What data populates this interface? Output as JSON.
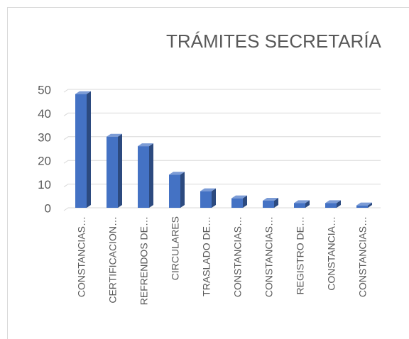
{
  "chart_data": {
    "type": "bar",
    "title": "TRÁMITES SECRETARÍA",
    "categories": [
      "CONSTANCIAS…",
      "CERTIFICACION…",
      "REFRENDOS DE…",
      "CIRCULARES",
      "TRASLADO DE…",
      "CONSTANCIAS…",
      "CONSTANCIAS…",
      "REGISTRO DE…",
      "CONSTANCIA…",
      "CONSTANCIAS…"
    ],
    "values": [
      48,
      30,
      26,
      14,
      7,
      4,
      3,
      2,
      2,
      1
    ],
    "color": "#4472c4",
    "ylim": [
      0,
      50
    ],
    "yticks": [
      0,
      10,
      20,
      30,
      40,
      50
    ],
    "grid": true
  }
}
